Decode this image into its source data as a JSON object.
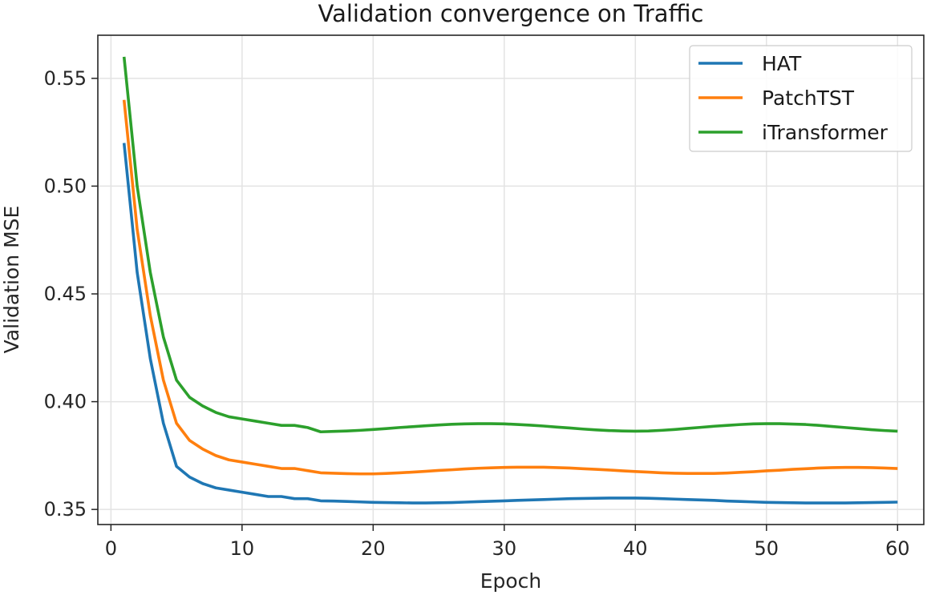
{
  "chart_data": {
    "type": "line",
    "title": "Validation convergence on Traffic",
    "xlabel": "Epoch",
    "ylabel": "Validation MSE",
    "xlim": [
      -1,
      62
    ],
    "ylim": [
      0.343,
      0.57
    ],
    "xticks": [
      0,
      10,
      20,
      30,
      40,
      50,
      60
    ],
    "yticks": [
      0.35,
      0.4,
      0.45,
      0.5,
      0.55
    ],
    "ytick_labels": [
      "0.35",
      "0.40",
      "0.45",
      "0.50",
      "0.55"
    ],
    "grid": true,
    "legend_position": "top-right",
    "x": [
      1,
      2,
      3,
      4,
      5,
      6,
      7,
      8,
      9,
      10,
      11,
      12,
      13,
      14,
      15,
      16,
      17,
      18,
      19,
      20,
      21,
      22,
      23,
      24,
      25,
      26,
      27,
      28,
      29,
      30,
      31,
      32,
      33,
      34,
      35,
      36,
      37,
      38,
      39,
      40,
      41,
      42,
      43,
      44,
      45,
      46,
      47,
      48,
      49,
      50,
      51,
      52,
      53,
      54,
      55,
      56,
      57,
      58,
      59,
      60
    ],
    "series": [
      {
        "name": "HAT",
        "color": "#1f77b4",
        "values": [
          0.52,
          0.46,
          0.42,
          0.39,
          0.37,
          0.365,
          0.362,
          0.36,
          0.359,
          0.358,
          0.357,
          0.356,
          0.356,
          0.355,
          0.355,
          0.354,
          0.3539,
          0.3537,
          0.3535,
          0.3533,
          0.3532,
          0.3531,
          0.353,
          0.353,
          0.3531,
          0.3532,
          0.3534,
          0.3536,
          0.3538,
          0.354,
          0.3542,
          0.3544,
          0.3546,
          0.3548,
          0.355,
          0.3551,
          0.3552,
          0.3553,
          0.3553,
          0.3553,
          0.3552,
          0.355,
          0.3548,
          0.3546,
          0.3544,
          0.3542,
          0.3539,
          0.3537,
          0.3535,
          0.3533,
          0.3532,
          0.3531,
          0.353,
          0.353,
          0.353,
          0.353,
          0.3531,
          0.3532,
          0.3533,
          0.3534
        ]
      },
      {
        "name": "PatchTST",
        "color": "#ff7f0e",
        "values": [
          0.54,
          0.48,
          0.44,
          0.41,
          0.39,
          0.382,
          0.378,
          0.375,
          0.373,
          0.372,
          0.371,
          0.37,
          0.369,
          0.369,
          0.368,
          0.367,
          0.3668,
          0.3666,
          0.3665,
          0.3665,
          0.3667,
          0.367,
          0.3673,
          0.3677,
          0.3681,
          0.3684,
          0.3688,
          0.3691,
          0.3693,
          0.3695,
          0.3696,
          0.3696,
          0.3696,
          0.3694,
          0.3692,
          0.3689,
          0.3686,
          0.3683,
          0.3679,
          0.3676,
          0.3673,
          0.367,
          0.3668,
          0.3667,
          0.3667,
          0.3667,
          0.3669,
          0.3672,
          0.3675,
          0.3679,
          0.3682,
          0.3686,
          0.3689,
          0.3692,
          0.3694,
          0.3695,
          0.3695,
          0.3694,
          0.3692,
          0.369
        ]
      },
      {
        "name": "iTransformer",
        "color": "#2ca02c",
        "values": [
          0.56,
          0.5,
          0.46,
          0.43,
          0.41,
          0.402,
          0.398,
          0.395,
          0.393,
          0.392,
          0.391,
          0.39,
          0.389,
          0.389,
          0.388,
          0.386,
          0.3862,
          0.3864,
          0.3867,
          0.3871,
          0.3875,
          0.388,
          0.3884,
          0.3888,
          0.3892,
          0.3895,
          0.3897,
          0.3898,
          0.3898,
          0.3897,
          0.3894,
          0.3891,
          0.3887,
          0.3882,
          0.3878,
          0.3873,
          0.3869,
          0.3866,
          0.3864,
          0.3863,
          0.3864,
          0.3867,
          0.3871,
          0.3876,
          0.3881,
          0.3886,
          0.389,
          0.3894,
          0.3897,
          0.3898,
          0.3898,
          0.3896,
          0.3894,
          0.389,
          0.3885,
          0.388,
          0.3875,
          0.387,
          0.3866,
          0.3863
        ]
      }
    ]
  }
}
